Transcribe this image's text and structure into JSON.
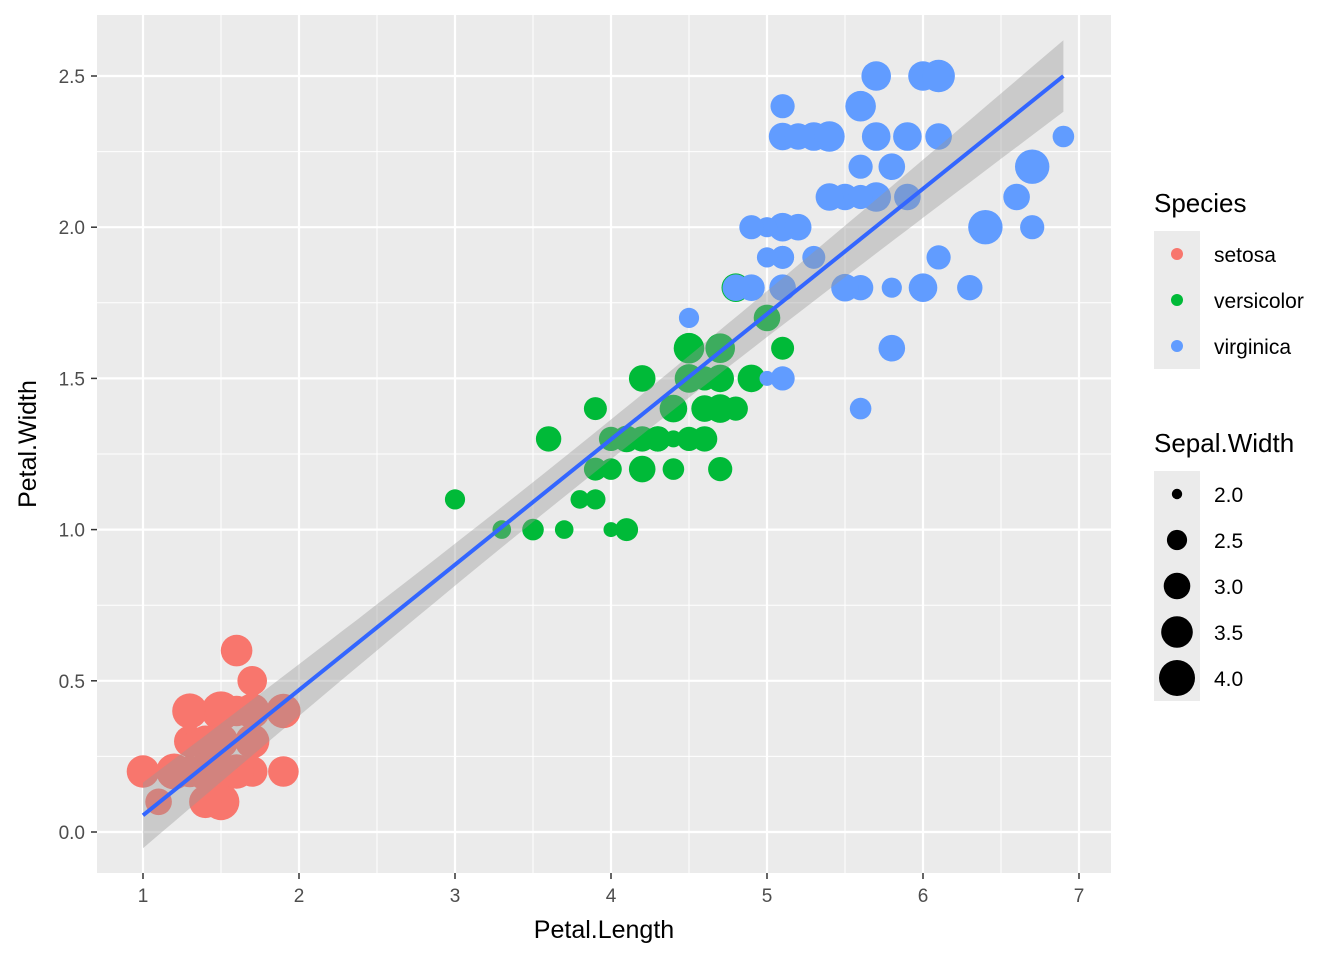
{
  "chart_data": {
    "type": "scatter",
    "xlabel": "Petal.Length",
    "ylabel": "Petal.Width",
    "xlim": [
      0.7,
      7.2
    ],
    "ylim": [
      -0.14,
      2.7
    ],
    "x_ticks": [
      1,
      2,
      3,
      4,
      5,
      6,
      7
    ],
    "y_ticks": [
      0.0,
      0.5,
      1.0,
      1.5,
      2.0,
      2.5
    ],
    "x_tick_labels": [
      "1",
      "2",
      "3",
      "4",
      "5",
      "6",
      "7"
    ],
    "y_tick_labels": [
      "0.0",
      "0.5",
      "1.0",
      "1.5",
      "2.0",
      "2.5"
    ],
    "grid": true,
    "background": "#EBEBEB",
    "color_legend": {
      "title": "Species",
      "position": "right",
      "entries": [
        {
          "label": "setosa",
          "color": "#F8766D"
        },
        {
          "label": "versicolor",
          "color": "#00BA38"
        },
        {
          "label": "virginica",
          "color": "#619CFF"
        }
      ]
    },
    "size_legend": {
      "title": "Sepal.Width",
      "position": "right",
      "entries": [
        {
          "label": "2.0",
          "value": 2.0
        },
        {
          "label": "2.5",
          "value": 2.5
        },
        {
          "label": "3.0",
          "value": 3.0
        },
        {
          "label": "3.5",
          "value": 3.5
        },
        {
          "label": "4.0",
          "value": 4.0
        }
      ]
    },
    "fit_line": {
      "method": "lm",
      "color": "#3366FF",
      "x": [
        1.0,
        6.9
      ],
      "y": [
        0.055,
        2.5
      ],
      "se_band": true
    },
    "series": [
      {
        "name": "setosa",
        "color": "#F8766D",
        "points": [
          [
            1.4,
            0.2,
            3.5
          ],
          [
            1.4,
            0.2,
            3.0
          ],
          [
            1.3,
            0.2,
            3.2
          ],
          [
            1.5,
            0.2,
            3.1
          ],
          [
            1.4,
            0.2,
            3.6
          ],
          [
            1.7,
            0.4,
            3.9
          ],
          [
            1.4,
            0.3,
            3.4
          ],
          [
            1.5,
            0.2,
            3.4
          ],
          [
            1.4,
            0.2,
            2.9
          ],
          [
            1.5,
            0.1,
            3.1
          ],
          [
            1.5,
            0.2,
            3.7
          ],
          [
            1.6,
            0.2,
            3.4
          ],
          [
            1.4,
            0.1,
            3.0
          ],
          [
            1.1,
            0.1,
            3.0
          ],
          [
            1.2,
            0.2,
            4.0
          ],
          [
            1.5,
            0.4,
            4.4
          ],
          [
            1.3,
            0.4,
            3.9
          ],
          [
            1.4,
            0.3,
            3.5
          ],
          [
            1.7,
            0.3,
            3.8
          ],
          [
            1.5,
            0.3,
            3.8
          ],
          [
            1.7,
            0.2,
            3.4
          ],
          [
            1.5,
            0.4,
            3.7
          ],
          [
            1.0,
            0.2,
            3.6
          ],
          [
            1.7,
            0.5,
            3.3
          ],
          [
            1.9,
            0.2,
            3.4
          ],
          [
            1.6,
            0.2,
            3.0
          ],
          [
            1.6,
            0.4,
            3.4
          ],
          [
            1.5,
            0.2,
            3.5
          ],
          [
            1.4,
            0.2,
            3.4
          ],
          [
            1.6,
            0.2,
            3.2
          ],
          [
            1.6,
            0.2,
            3.1
          ],
          [
            1.5,
            0.4,
            3.4
          ],
          [
            1.5,
            0.1,
            4.1
          ],
          [
            1.4,
            0.2,
            4.2
          ],
          [
            1.5,
            0.2,
            3.1
          ],
          [
            1.2,
            0.2,
            3.2
          ],
          [
            1.3,
            0.2,
            3.5
          ],
          [
            1.4,
            0.1,
            3.6
          ],
          [
            1.3,
            0.2,
            3.0
          ],
          [
            1.5,
            0.2,
            3.4
          ],
          [
            1.3,
            0.3,
            3.5
          ],
          [
            1.3,
            0.3,
            2.3
          ],
          [
            1.3,
            0.2,
            3.2
          ],
          [
            1.6,
            0.6,
            3.5
          ],
          [
            1.9,
            0.4,
            3.8
          ],
          [
            1.4,
            0.3,
            3.0
          ],
          [
            1.6,
            0.2,
            3.8
          ],
          [
            1.4,
            0.2,
            3.2
          ],
          [
            1.5,
            0.2,
            3.7
          ],
          [
            1.4,
            0.2,
            3.3
          ]
        ]
      },
      {
        "name": "versicolor",
        "color": "#00BA38",
        "points": [
          [
            4.7,
            1.4,
            3.2
          ],
          [
            4.5,
            1.5,
            3.2
          ],
          [
            4.9,
            1.5,
            3.1
          ],
          [
            4.0,
            1.3,
            2.3
          ],
          [
            4.6,
            1.5,
            2.8
          ],
          [
            4.5,
            1.3,
            2.8
          ],
          [
            4.7,
            1.6,
            3.3
          ],
          [
            3.3,
            1.0,
            2.4
          ],
          [
            4.6,
            1.3,
            2.9
          ],
          [
            3.9,
            1.4,
            2.7
          ],
          [
            3.5,
            1.0,
            2.0
          ],
          [
            4.2,
            1.5,
            3.0
          ],
          [
            4.0,
            1.0,
            2.2
          ],
          [
            4.7,
            1.4,
            2.9
          ],
          [
            3.6,
            1.3,
            2.9
          ],
          [
            4.4,
            1.4,
            3.1
          ],
          [
            4.5,
            1.5,
            3.0
          ],
          [
            4.1,
            1.0,
            2.7
          ],
          [
            4.5,
            1.5,
            2.2
          ],
          [
            3.9,
            1.1,
            2.5
          ],
          [
            4.8,
            1.8,
            3.2
          ],
          [
            4.0,
            1.3,
            2.8
          ],
          [
            4.9,
            1.5,
            2.5
          ],
          [
            4.7,
            1.2,
            2.8
          ],
          [
            4.3,
            1.3,
            2.9
          ],
          [
            4.4,
            1.4,
            3.0
          ],
          [
            4.8,
            1.4,
            2.8
          ],
          [
            5.0,
            1.7,
            3.0
          ],
          [
            4.5,
            1.5,
            2.9
          ],
          [
            3.5,
            1.0,
            2.6
          ],
          [
            3.8,
            1.1,
            2.4
          ],
          [
            3.7,
            1.0,
            2.4
          ],
          [
            3.9,
            1.2,
            2.7
          ],
          [
            5.1,
            1.6,
            2.7
          ],
          [
            4.5,
            1.5,
            3.0
          ],
          [
            4.5,
            1.6,
            3.4
          ],
          [
            4.7,
            1.5,
            3.1
          ],
          [
            4.4,
            1.3,
            2.3
          ],
          [
            4.1,
            1.3,
            3.0
          ],
          [
            4.0,
            1.3,
            2.5
          ],
          [
            4.4,
            1.2,
            2.6
          ],
          [
            4.6,
            1.4,
            3.0
          ],
          [
            4.0,
            1.2,
            2.6
          ],
          [
            3.3,
            1.0,
            2.3
          ],
          [
            4.2,
            1.3,
            2.7
          ],
          [
            4.2,
            1.2,
            3.0
          ],
          [
            4.2,
            1.3,
            2.9
          ],
          [
            4.3,
            1.3,
            2.9
          ],
          [
            3.0,
            1.1,
            2.5
          ],
          [
            4.1,
            1.3,
            2.8
          ]
        ]
      },
      {
        "name": "virginica",
        "color": "#619CFF",
        "points": [
          [
            6.0,
            2.5,
            3.3
          ],
          [
            5.1,
            1.9,
            2.7
          ],
          [
            5.9,
            2.1,
            3.0
          ],
          [
            5.6,
            1.8,
            2.9
          ],
          [
            5.8,
            2.2,
            3.0
          ],
          [
            6.6,
            2.1,
            3.0
          ],
          [
            4.5,
            1.7,
            2.5
          ],
          [
            6.3,
            1.8,
            2.9
          ],
          [
            5.8,
            1.8,
            2.5
          ],
          [
            6.1,
            2.5,
            3.6
          ],
          [
            5.1,
            2.0,
            3.2
          ],
          [
            5.3,
            1.9,
            2.7
          ],
          [
            5.5,
            2.1,
            3.0
          ],
          [
            5.0,
            2.0,
            2.5
          ],
          [
            5.1,
            2.4,
            2.8
          ],
          [
            5.3,
            2.3,
            3.2
          ],
          [
            5.5,
            1.8,
            3.0
          ],
          [
            6.7,
            2.2,
            3.8
          ],
          [
            6.9,
            2.3,
            2.6
          ],
          [
            5.0,
            1.5,
            2.2
          ],
          [
            5.7,
            2.3,
            3.2
          ],
          [
            4.9,
            2.0,
            2.8
          ],
          [
            6.7,
            2.0,
            2.8
          ],
          [
            4.9,
            1.8,
            2.7
          ],
          [
            5.7,
            2.1,
            3.3
          ],
          [
            6.0,
            1.8,
            3.2
          ],
          [
            4.8,
            1.8,
            2.8
          ],
          [
            4.9,
            1.8,
            3.0
          ],
          [
            5.6,
            2.1,
            2.8
          ],
          [
            5.8,
            1.6,
            3.0
          ],
          [
            6.1,
            1.9,
            2.8
          ],
          [
            6.4,
            2.0,
            3.8
          ],
          [
            5.6,
            2.2,
            2.8
          ],
          [
            5.1,
            1.5,
            2.8
          ],
          [
            5.6,
            1.4,
            2.6
          ],
          [
            6.1,
            2.3,
            3.0
          ],
          [
            5.6,
            2.4,
            3.4
          ],
          [
            5.5,
            1.8,
            3.1
          ],
          [
            4.8,
            1.8,
            3.0
          ],
          [
            5.4,
            2.1,
            3.1
          ],
          [
            5.6,
            2.4,
            3.1
          ],
          [
            5.1,
            2.3,
            3.1
          ],
          [
            5.1,
            1.9,
            2.7
          ],
          [
            5.9,
            2.3,
            3.2
          ],
          [
            5.7,
            2.5,
            3.3
          ],
          [
            5.2,
            2.3,
            3.0
          ],
          [
            5.0,
            1.9,
            2.5
          ],
          [
            5.2,
            2.0,
            3.0
          ],
          [
            5.4,
            2.3,
            3.4
          ],
          [
            5.1,
            1.8,
            3.0
          ]
        ]
      }
    ]
  }
}
